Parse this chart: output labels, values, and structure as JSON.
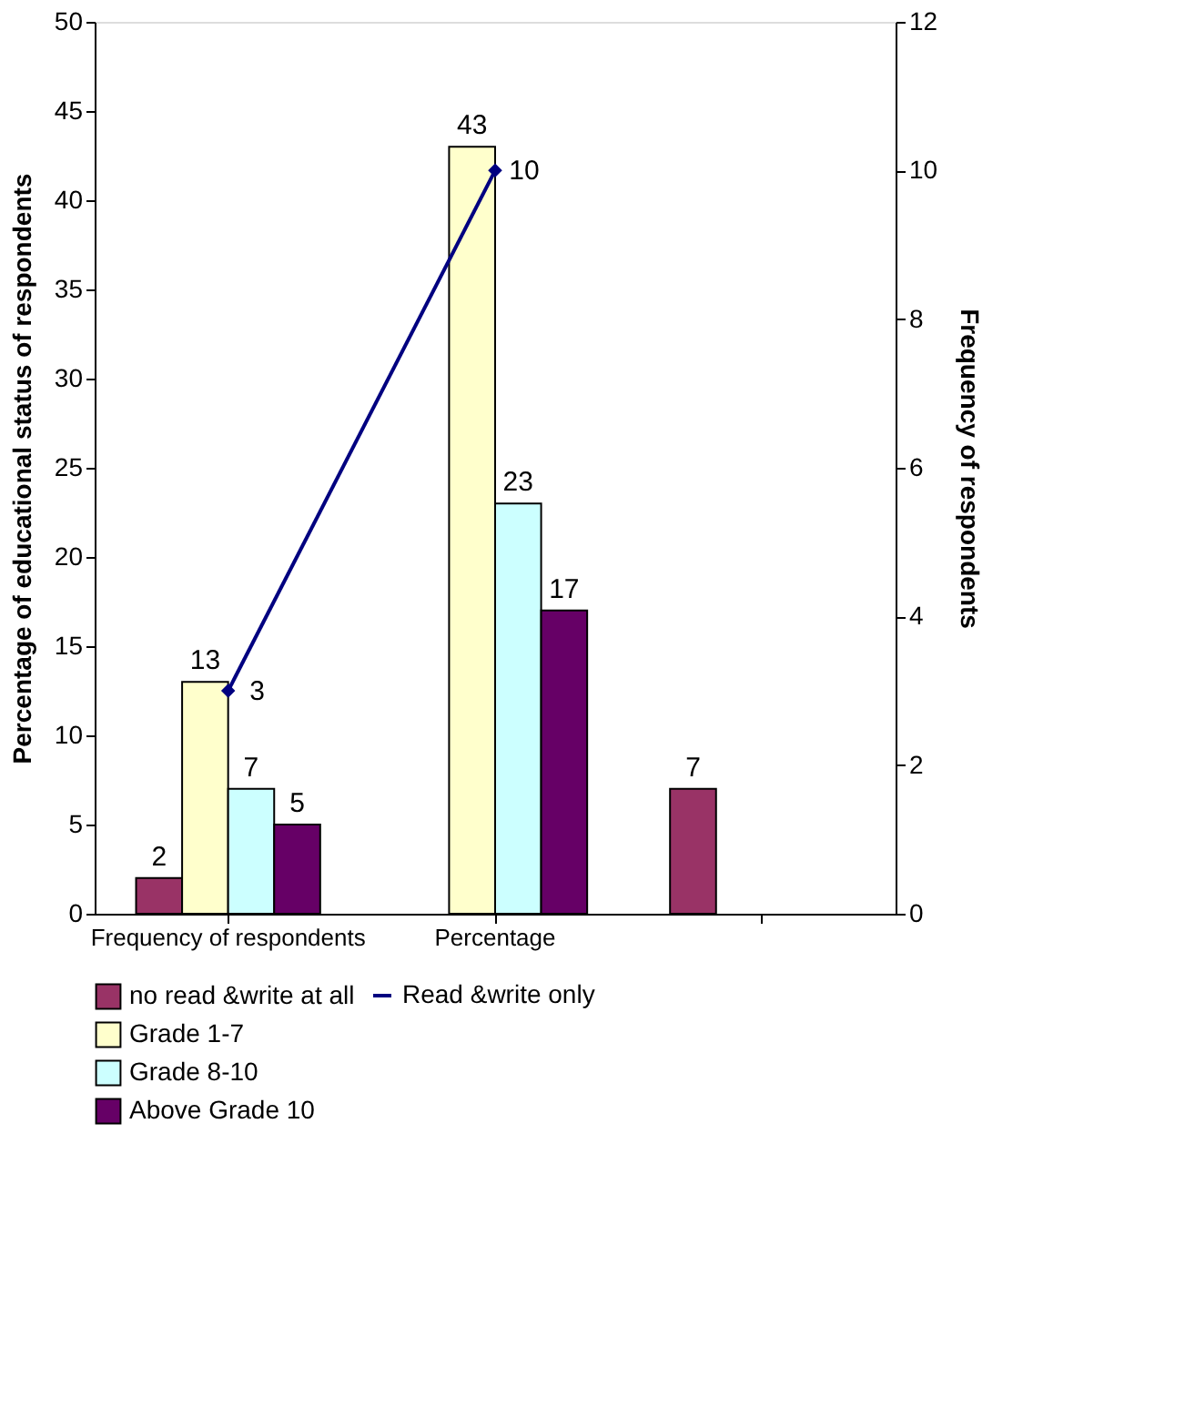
{
  "chart_data": {
    "type": "bar",
    "categories": [
      "Frequency of respondents",
      "Percentage",
      null
    ],
    "ylabel": "Percentage of educational status of respondents",
    "y2label": "Frequency of respondents",
    "ylim": [
      0,
      50
    ],
    "yticks": [
      0,
      5,
      10,
      15,
      20,
      25,
      30,
      35,
      40,
      45,
      50
    ],
    "y2lim": [
      0,
      12
    ],
    "y2ticks": [
      0,
      2,
      4,
      6,
      8,
      10,
      12
    ],
    "series": [
      {
        "name": "no read &write at all",
        "color": "#993366",
        "values": [
          2,
          null,
          7
        ]
      },
      {
        "name": "Grade 1-7",
        "color": "#ffffcc",
        "values": [
          13,
          43,
          null
        ]
      },
      {
        "name": "Grade 8-10",
        "color": "#ccffff",
        "values": [
          7,
          23,
          null
        ]
      },
      {
        "name": "Above Grade 10",
        "color": "#660066",
        "values": [
          5,
          17,
          null
        ]
      },
      {
        "name": "Read &write only",
        "color": "#000080",
        "values": [
          3,
          10,
          null
        ],
        "type": "line",
        "axis": "y2",
        "marker": "diamond"
      }
    ],
    "data_labels": true,
    "grid": false,
    "legend": "bottom"
  }
}
